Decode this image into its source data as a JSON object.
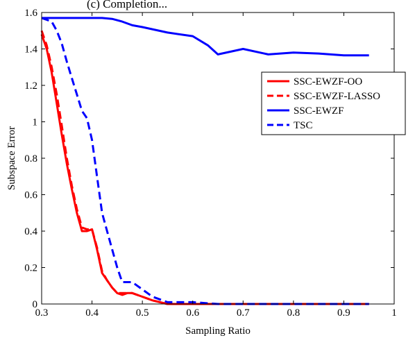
{
  "chart_data": {
    "type": "line",
    "title": "(c) Completion...",
    "xlabel": "Sampling Ratio",
    "ylabel": "Subspace Error",
    "xlim": [
      0.3,
      1.0
    ],
    "ylim": [
      0,
      1.6
    ],
    "xticks": [
      0.3,
      0.4,
      0.5,
      0.6,
      0.7,
      0.8,
      0.9,
      1
    ],
    "xtick_labels": [
      "0.3",
      "0.4",
      "0.5",
      "0.6",
      "0.7",
      "0.8",
      "0.9",
      "1"
    ],
    "yticks": [
      0,
      0.2,
      0.4,
      0.6,
      0.8,
      1,
      1.2,
      1.4,
      1.6
    ],
    "ytick_labels": [
      "0",
      "0.2",
      "0.4",
      "0.6",
      "0.8",
      "1",
      "1.2",
      "1.4",
      "1.6"
    ],
    "grid": false,
    "legend_position": "right",
    "series": [
      {
        "name": "SSC-EWZF-OO",
        "color": "#ff0000",
        "dash": "solid",
        "x": [
          0.3,
          0.31,
          0.32,
          0.33,
          0.34,
          0.35,
          0.36,
          0.37,
          0.38,
          0.39,
          0.4,
          0.41,
          0.42,
          0.43,
          0.44,
          0.45,
          0.46,
          0.47,
          0.48,
          0.49,
          0.5,
          0.52,
          0.55,
          0.6,
          0.65,
          0.7,
          0.75,
          0.8,
          0.85,
          0.9,
          0.95
        ],
        "y": [
          1.48,
          1.4,
          1.27,
          1.1,
          0.93,
          0.77,
          0.63,
          0.5,
          0.4,
          0.4,
          0.41,
          0.3,
          0.17,
          0.13,
          0.09,
          0.06,
          0.05,
          0.06,
          0.06,
          0.05,
          0.04,
          0.02,
          0.0,
          0.0,
          0.0,
          0.0,
          0.0,
          0.0,
          0.0,
          0.0,
          0.0
        ]
      },
      {
        "name": "SSC-EWZF-LASSO",
        "color": "#ff0000",
        "dash": "dashed",
        "x": [
          0.3,
          0.31,
          0.32,
          0.33,
          0.34,
          0.35,
          0.36,
          0.37,
          0.38,
          0.39,
          0.4,
          0.41,
          0.42,
          0.43,
          0.44,
          0.45,
          0.46,
          0.47,
          0.48,
          0.49,
          0.5,
          0.52,
          0.55,
          0.6,
          0.65,
          0.7,
          0.75,
          0.8,
          0.85,
          0.9,
          0.95
        ],
        "y": [
          1.5,
          1.42,
          1.3,
          1.15,
          0.98,
          0.8,
          0.65,
          0.52,
          0.42,
          0.41,
          0.41,
          0.31,
          0.18,
          0.13,
          0.09,
          0.06,
          0.06,
          0.06,
          0.06,
          0.05,
          0.04,
          0.02,
          0.0,
          0.0,
          0.0,
          0.0,
          0.0,
          0.0,
          0.0,
          0.0,
          0.0
        ]
      },
      {
        "name": "SSC-EWZF",
        "color": "#0000ff",
        "dash": "solid",
        "x": [
          0.3,
          0.32,
          0.35,
          0.38,
          0.4,
          0.42,
          0.44,
          0.46,
          0.48,
          0.5,
          0.55,
          0.6,
          0.63,
          0.65,
          0.7,
          0.75,
          0.8,
          0.85,
          0.9,
          0.95
        ],
        "y": [
          1.57,
          1.57,
          1.57,
          1.57,
          1.57,
          1.57,
          1.565,
          1.55,
          1.53,
          1.52,
          1.49,
          1.47,
          1.42,
          1.37,
          1.4,
          1.37,
          1.38,
          1.375,
          1.365,
          1.365
        ]
      },
      {
        "name": "TSC",
        "color": "#0000ff",
        "dash": "dashed",
        "x": [
          0.3,
          0.31,
          0.32,
          0.33,
          0.34,
          0.35,
          0.36,
          0.37,
          0.38,
          0.39,
          0.4,
          0.41,
          0.42,
          0.43,
          0.44,
          0.45,
          0.46,
          0.47,
          0.48,
          0.49,
          0.5,
          0.52,
          0.55,
          0.6,
          0.65,
          0.7,
          0.75,
          0.8,
          0.85,
          0.9,
          0.95
        ],
        "y": [
          1.57,
          1.56,
          1.55,
          1.5,
          1.43,
          1.33,
          1.24,
          1.15,
          1.06,
          1.02,
          0.9,
          0.7,
          0.5,
          0.4,
          0.3,
          0.2,
          0.12,
          0.12,
          0.12,
          0.1,
          0.08,
          0.04,
          0.01,
          0.01,
          0.0,
          0.0,
          0.0,
          0.0,
          0.0,
          0.0,
          0.0
        ]
      }
    ]
  }
}
